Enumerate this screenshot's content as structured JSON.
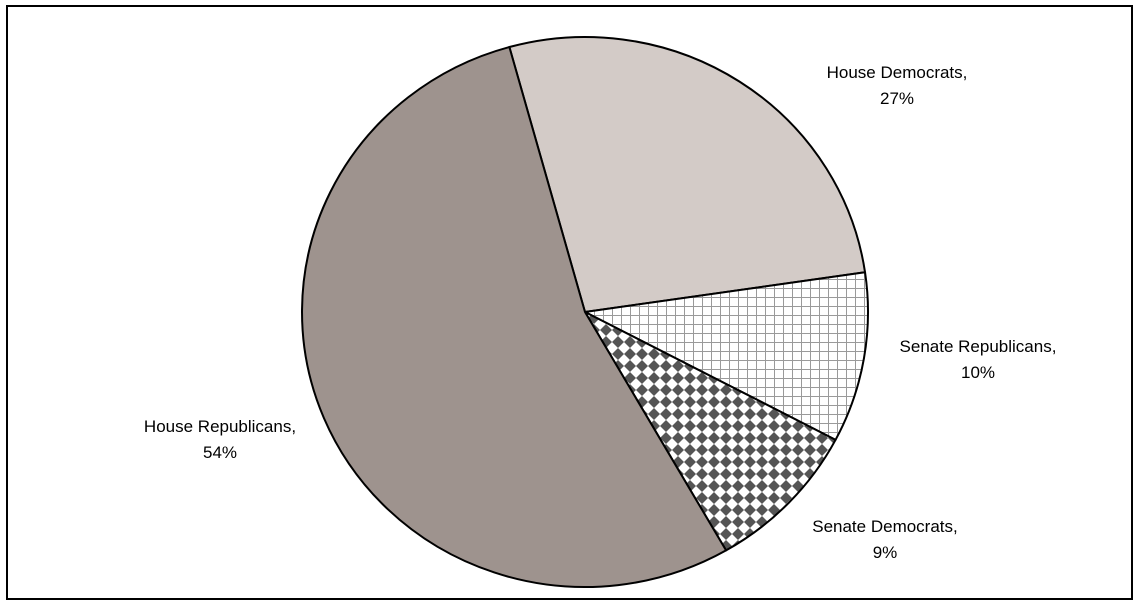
{
  "chart_data": {
    "type": "pie",
    "slices": [
      {
        "name": "House Democrats",
        "value": 27,
        "label_name": "House Democrats,",
        "label_pct": "27%",
        "fill": "#d3cbc7",
        "pattern": "solid"
      },
      {
        "name": "Senate Republicans",
        "value": 10,
        "label_name": "Senate Republicans,",
        "label_pct": "10%",
        "fill": "#ffffff",
        "pattern": "grid"
      },
      {
        "name": "Senate Democrats",
        "value": 9,
        "label_name": "Senate Democrats,",
        "label_pct": "9%",
        "fill": "#555555",
        "pattern": "diamond-checker"
      },
      {
        "name": "House Republicans",
        "value": 54,
        "label_name": "House Republicans,",
        "label_pct": "54%",
        "fill": "#9e938e",
        "pattern": "solid"
      }
    ],
    "legend": "none",
    "labels": "outside, category name and percent"
  }
}
